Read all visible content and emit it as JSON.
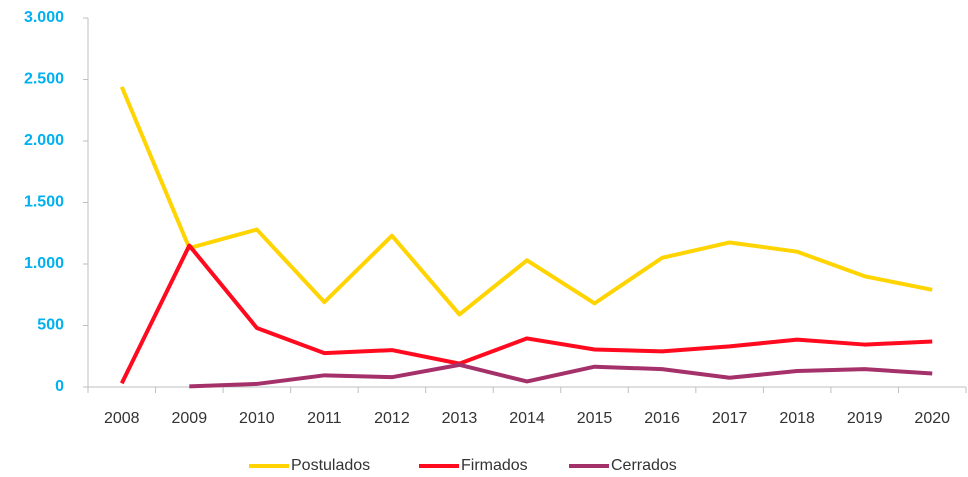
{
  "chart_data": {
    "type": "line",
    "categories": [
      "2008",
      "2009",
      "2010",
      "2011",
      "2012",
      "2013",
      "2014",
      "2015",
      "2016",
      "2017",
      "2018",
      "2019",
      "2020"
    ],
    "series": [
      {
        "name": "Postulados",
        "color": "#ffd400",
        "values": [
          2440,
          1130,
          1280,
          690,
          1230,
          590,
          1030,
          680,
          1050,
          1175,
          1100,
          900,
          790
        ]
      },
      {
        "name": "Firmados",
        "color": "#ff0a1e",
        "values": [
          30,
          1150,
          480,
          275,
          300,
          190,
          395,
          305,
          290,
          330,
          385,
          345,
          370
        ]
      },
      {
        "name": "Cerrados",
        "color": "#a5316b",
        "values": [
          null,
          5,
          25,
          95,
          80,
          180,
          45,
          165,
          145,
          75,
          130,
          145,
          110
        ]
      }
    ],
    "ylim": [
      0,
      3000
    ],
    "yticks": [
      0,
      500,
      {
        "value": 1000,
        "label": "1.000"
      },
      {
        "value": 1500,
        "label": "1.500"
      },
      {
        "value": 2000,
        "label": "2.000"
      },
      {
        "value": 2500,
        "label": "2.500"
      },
      {
        "value": 3000,
        "label": "3.000"
      }
    ],
    "grid": false,
    "legend": "bottom"
  }
}
